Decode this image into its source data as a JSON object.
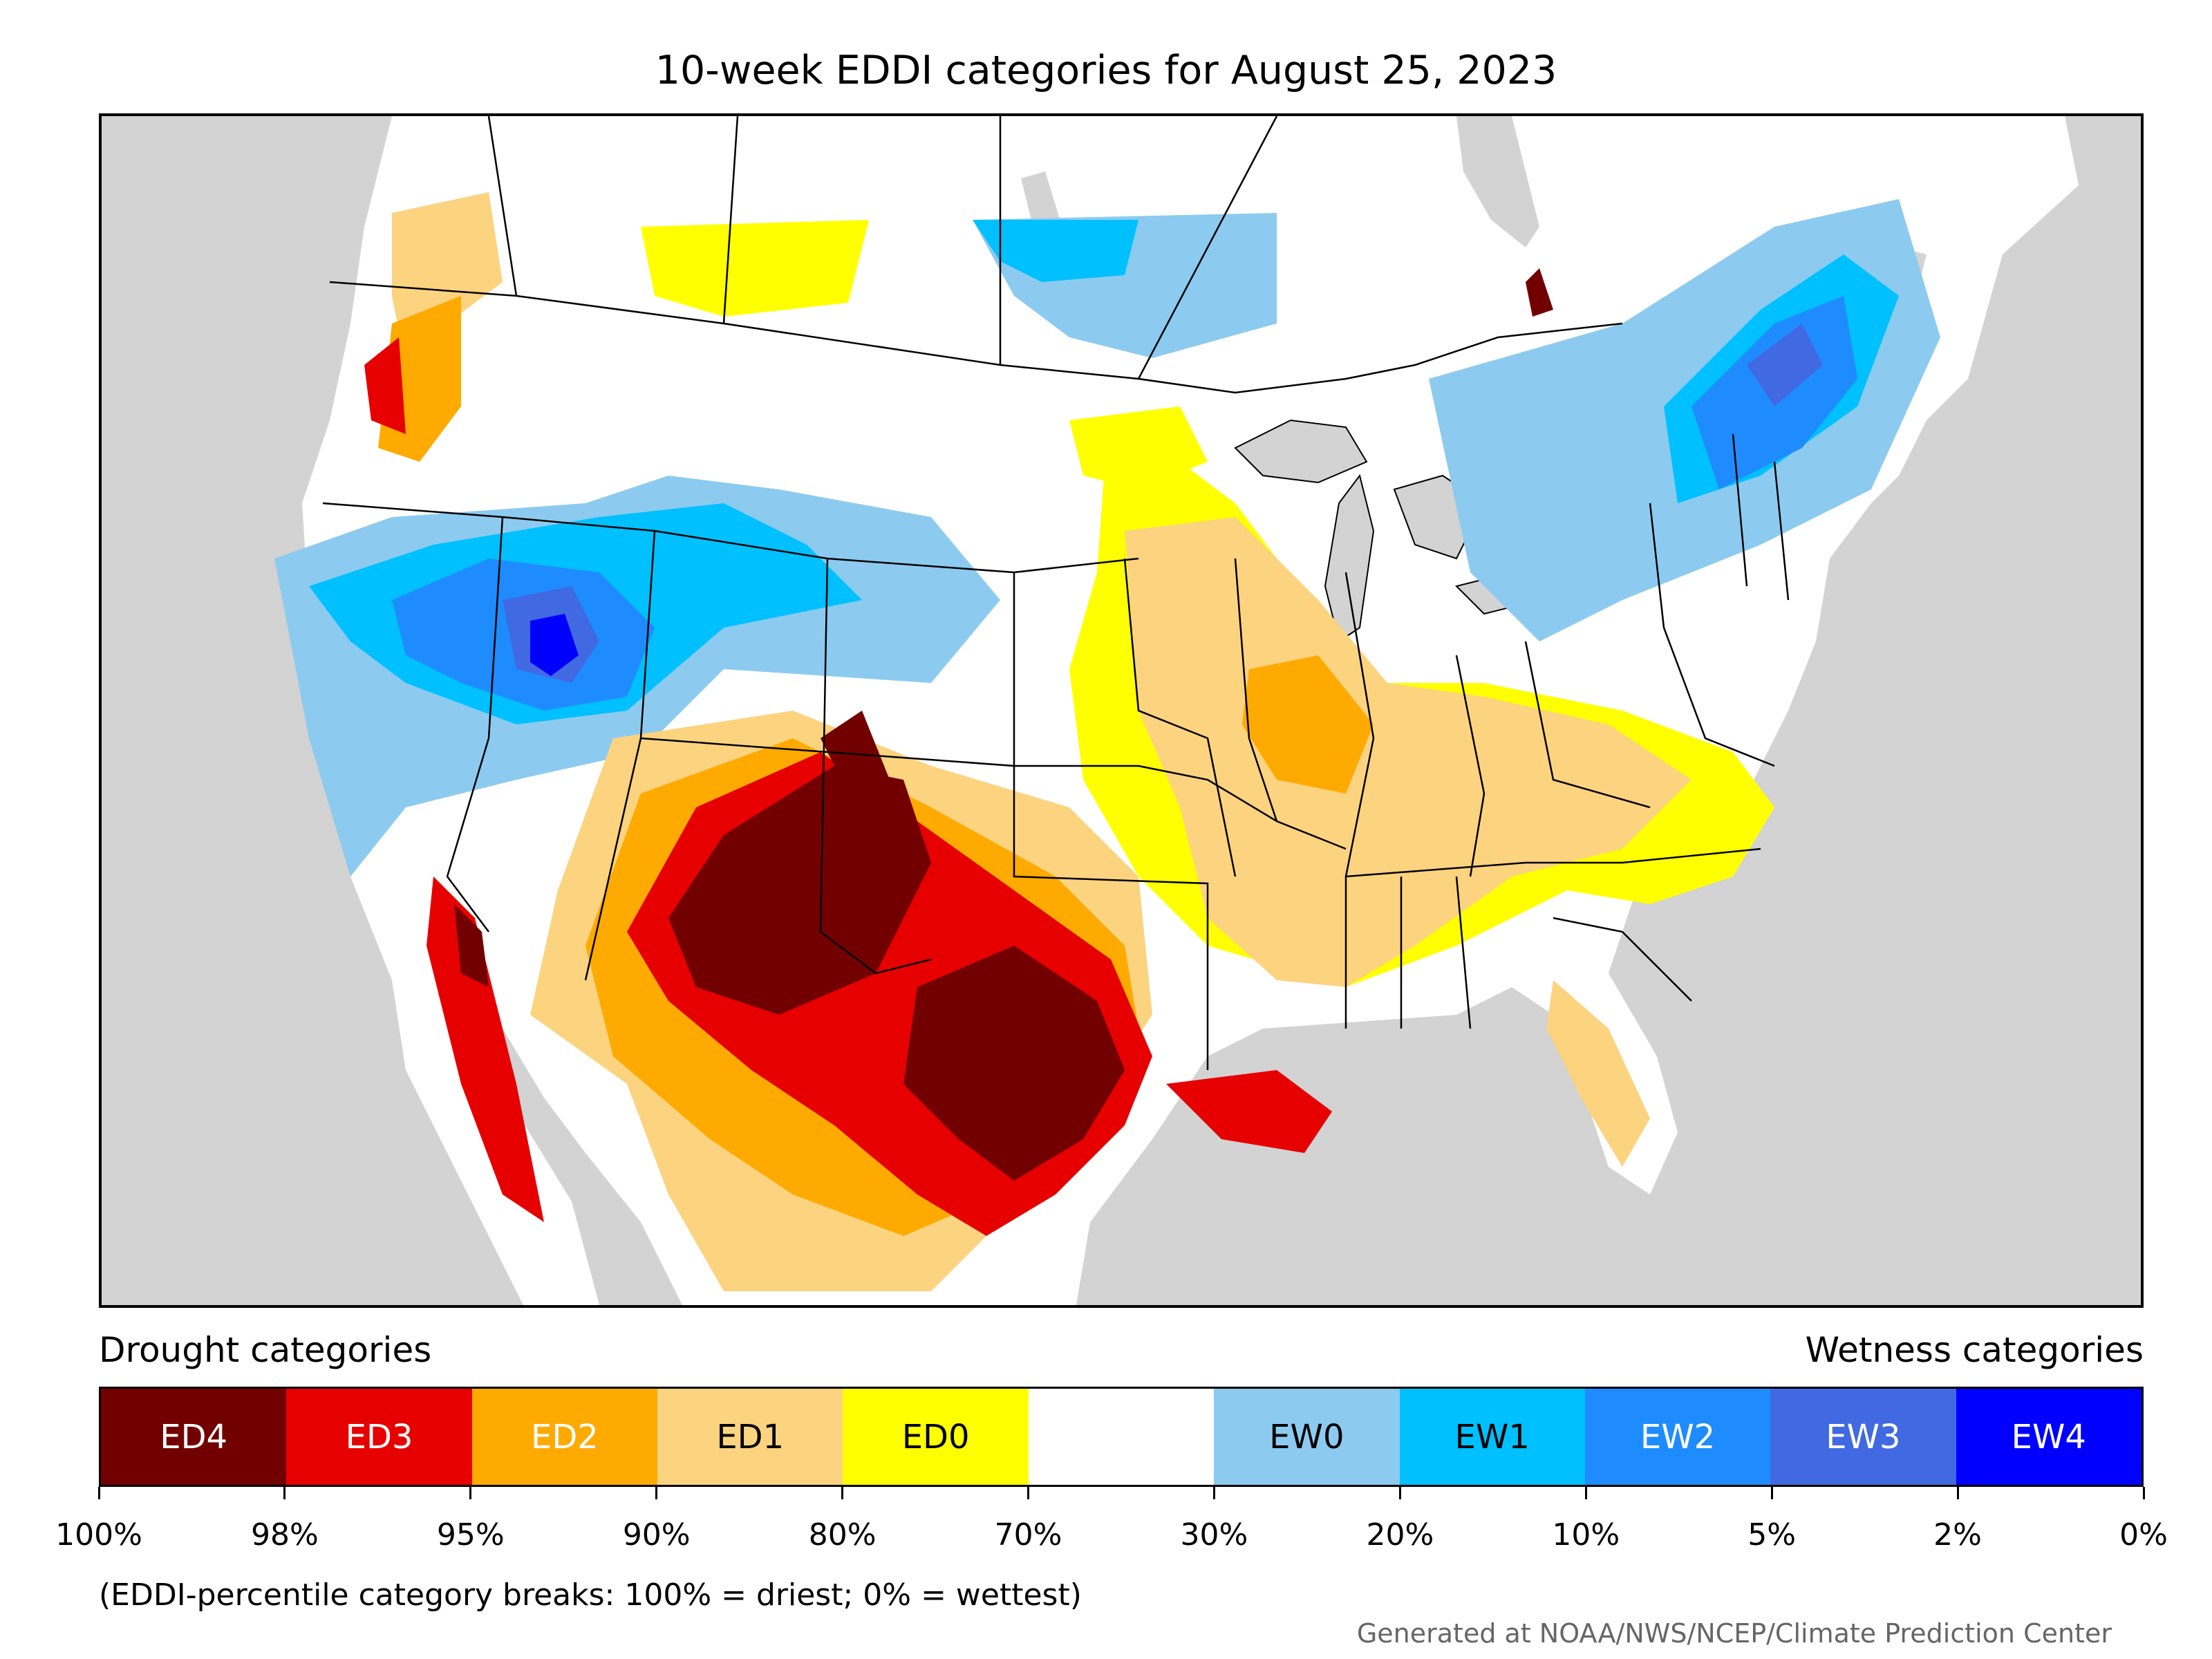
{
  "title": "10-week EDDI categories for August 25, 2023",
  "legend": {
    "drought_caption": "Drought categories",
    "wetness_caption": "Wetness categories",
    "categories": [
      {
        "label": "ED4",
        "color": "#730000",
        "text_color": "#ffffff"
      },
      {
        "label": "ED3",
        "color": "#e60000",
        "text_color": "#ffffff"
      },
      {
        "label": "ED2",
        "color": "#ffaa00",
        "text_color": "#ffffff"
      },
      {
        "label": "ED1",
        "color": "#fcd37f",
        "text_color": "#000000"
      },
      {
        "label": "ED0",
        "color": "#ffff00",
        "text_color": "#000000"
      },
      {
        "label": "",
        "color": "#ffffff",
        "text_color": "#000000"
      },
      {
        "label": "EW0",
        "color": "#8ccbef",
        "text_color": "#000000"
      },
      {
        "label": "EW1",
        "color": "#00c0ff",
        "text_color": "#000000"
      },
      {
        "label": "EW2",
        "color": "#1e8cff",
        "text_color": "#ffffff"
      },
      {
        "label": "EW3",
        "color": "#4169e1",
        "text_color": "#ffffff"
      },
      {
        "label": "EW4",
        "color": "#0000ff",
        "text_color": "#ffffff"
      }
    ],
    "ticks": [
      "100%",
      "98%",
      "95%",
      "90%",
      "80%",
      "70%",
      "30%",
      "20%",
      "10%",
      "5%",
      "2%",
      "0%"
    ]
  },
  "note": "(EDDI-percentile category breaks: 100% = driest; 0% = wettest)",
  "credit": "Generated at NOAA/NWS/NCEP/Climate Prediction Center",
  "map": {
    "background_color": "#d3d3d3",
    "land_color": "#ffffff",
    "water_color": "#d3d3d3",
    "border_color": "#000000"
  }
}
